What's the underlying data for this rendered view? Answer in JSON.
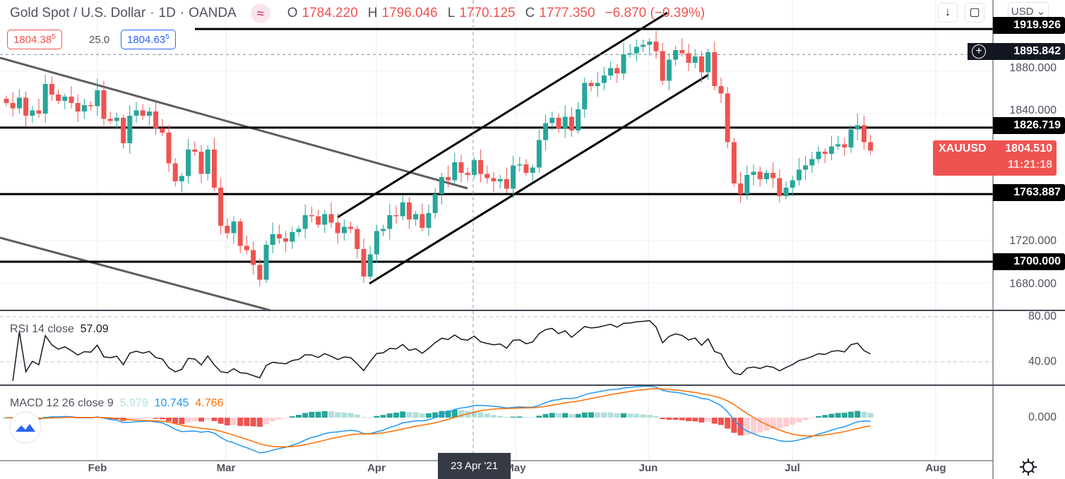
{
  "header": {
    "symbol": "Gold Spot / U.S. Dollar",
    "sep": "·",
    "interval": "1D",
    "broker": "OANDA",
    "open_label": "O",
    "open": "1784.220",
    "high_label": "H",
    "high": "1796.046",
    "low_label": "L",
    "low": "1770.125",
    "close_label": "C",
    "close": "1777.350",
    "change": "−6.870 (−0.39%)",
    "wave_icon": "≈"
  },
  "quote": {
    "bid": "1804.38",
    "bid_sup": "5",
    "spread": "25.0",
    "ask": "1804.63",
    "ask_sup": "5"
  },
  "toolbar": {
    "down_icon": "↓",
    "fullscreen_icon": "▢",
    "currency": "USD ⌄"
  },
  "price_axis": {
    "ticks": [
      "1880.000",
      "1840.000",
      "1720.000",
      "1680.000"
    ],
    "levels": [
      "1919.926",
      "1895.842",
      "1826.719",
      "1763.887",
      "1700.000"
    ],
    "symbol_tag": "XAUUSD",
    "last_price": "1804.510",
    "countdown": "11:21:18"
  },
  "rsi": {
    "label": "RSI 14 close",
    "value": "57.09",
    "ticks": [
      "80.00",
      "40.00"
    ]
  },
  "macd": {
    "label": "MACD 12 26 close 9",
    "hist": "5.979",
    "macd": "10.745",
    "signal": "4.766",
    "tick": "0.000"
  },
  "time_axis": {
    "labels": [
      "Feb",
      "Mar",
      "Apr",
      "May",
      "Jun",
      "Jul",
      "Aug"
    ],
    "crosshair": "23 Apr '21"
  },
  "colors": {
    "up": "#26a69a",
    "down": "#ef5350",
    "macd": "#2196f3",
    "signal": "#ff6d00"
  },
  "chart_data": {
    "type": "candlestick",
    "title": "Gold Spot / U.S. Dollar · 1D · OANDA",
    "ylim": [
      1660,
      1940
    ],
    "horizontal_levels": [
      1919.926,
      1895.842,
      1826.719,
      1763.887,
      1700.0
    ],
    "closes": [
      1850,
      1845,
      1855,
      1838,
      1843,
      1840,
      1868,
      1858,
      1852,
      1856,
      1850,
      1842,
      1848,
      1847,
      1862,
      1835,
      1833,
      1836,
      1812,
      1838,
      1843,
      1838,
      1842,
      1826,
      1822,
      1793,
      1776,
      1781,
      1806,
      1804,
      1783,
      1806,
      1770,
      1734,
      1727,
      1738,
      1715,
      1711,
      1697,
      1683,
      1716,
      1726,
      1722,
      1719,
      1728,
      1731,
      1744,
      1743,
      1735,
      1745,
      1737,
      1727,
      1733,
      1731,
      1712,
      1686,
      1707,
      1729,
      1731,
      1744,
      1743,
      1756,
      1740,
      1745,
      1732,
      1746,
      1764,
      1780,
      1777,
      1794,
      1784,
      1782,
      1796,
      1783,
      1779,
      1776,
      1778,
      1769,
      1791,
      1792,
      1784,
      1789,
      1815,
      1831,
      1836,
      1826,
      1837,
      1824,
      1844,
      1869,
      1866,
      1869,
      1876,
      1883,
      1878,
      1896,
      1897,
      1903,
      1905,
      1908,
      1899,
      1871,
      1891,
      1900,
      1897,
      1888,
      1894,
      1879,
      1898,
      1866,
      1859,
      1813,
      1774,
      1764,
      1782,
      1785,
      1778,
      1784,
      1779,
      1762,
      1770,
      1777,
      1787,
      1791,
      1797,
      1804,
      1802,
      1809,
      1811,
      1808,
      1825,
      1829,
      1813,
      1805
    ],
    "rsi_range": [
      20,
      90
    ],
    "indicators": [
      "RSI 14",
      "MACD 12 26 9"
    ]
  }
}
